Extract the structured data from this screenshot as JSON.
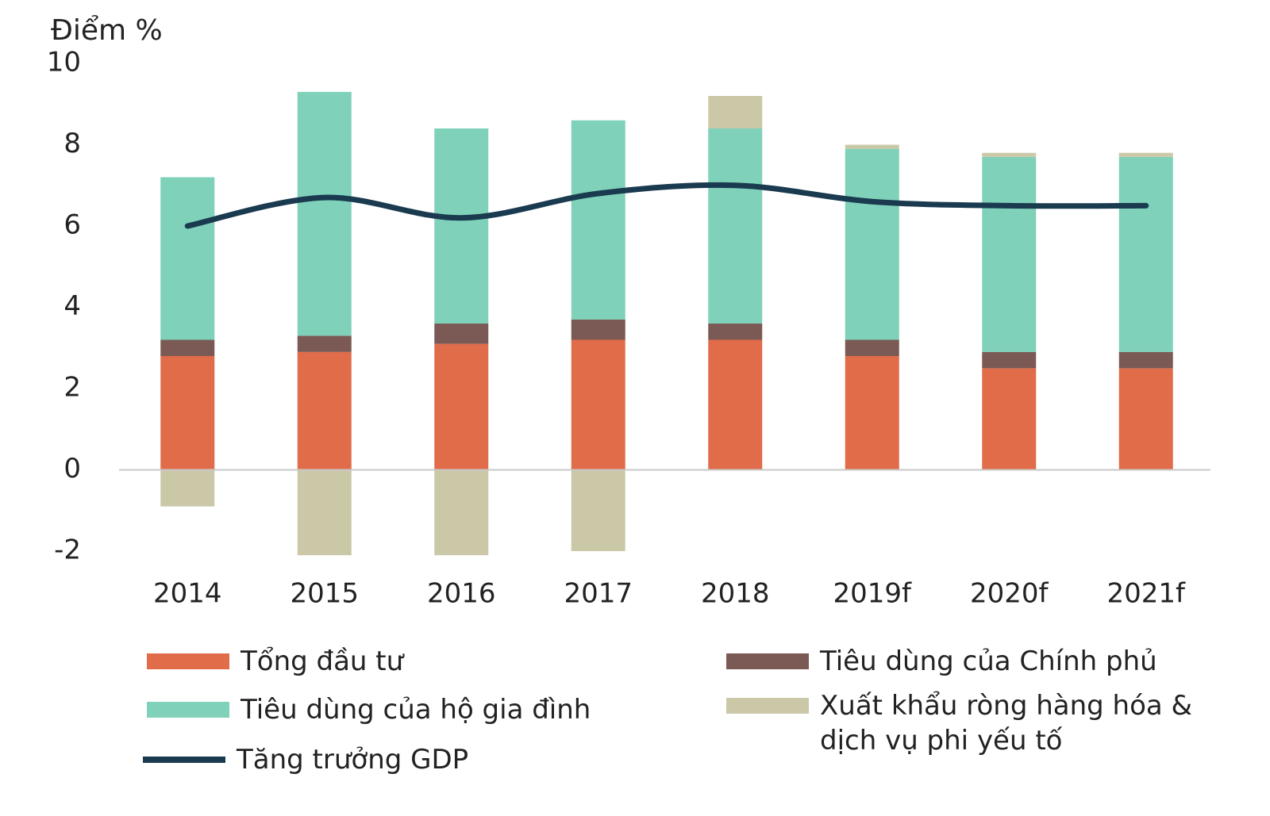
{
  "chart_data": {
    "type": "bar",
    "stacked": true,
    "y_label": "Điểm %",
    "categories": [
      "2014",
      "2015",
      "2016",
      "2017",
      "2018",
      "2019f",
      "2020f",
      "2021f"
    ],
    "series": [
      {
        "name": "Tổng đầu tư",
        "color": "#e06c4a",
        "values": [
          2.8,
          2.9,
          3.1,
          3.2,
          3.2,
          2.8,
          2.5,
          2.5
        ]
      },
      {
        "name": "Tiêu dùng của Chính phủ",
        "color": "#7b5a55",
        "values": [
          0.4,
          0.4,
          0.5,
          0.5,
          0.4,
          0.4,
          0.4,
          0.4
        ]
      },
      {
        "name": "Tiêu dùng của hộ gia đình",
        "color": "#7fd1b9",
        "values": [
          4.0,
          6.0,
          4.8,
          4.9,
          4.8,
          4.7,
          4.8,
          4.8
        ]
      },
      {
        "name": "Xuất khẩu ròng hàng hóa & dịch vụ phi yếu tố",
        "color": "#cbc8a8",
        "values": [
          -0.9,
          -2.1,
          -2.1,
          -2.0,
          0.8,
          0.1,
          0.1,
          0.1
        ]
      },
      {
        "name": "Tăng trưởng GDP",
        "type": "line",
        "color": "#1a3a4f",
        "values": [
          6.0,
          6.7,
          6.2,
          6.8,
          7.0,
          6.6,
          6.5,
          6.5
        ]
      }
    ],
    "ylim": [
      -2,
      10
    ],
    "yticks": [
      -2,
      0,
      2,
      4,
      6,
      8,
      10
    ],
    "grid": false
  }
}
